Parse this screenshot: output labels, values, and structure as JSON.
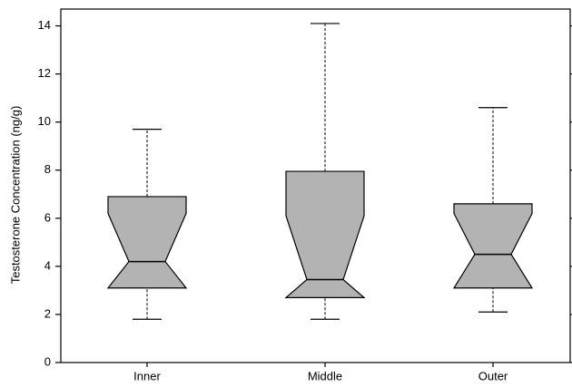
{
  "chart_data": {
    "type": "box",
    "y_label": "Testosterone Concentration (ng/g)",
    "categories": [
      "Inner",
      "Middle",
      "Outer"
    ],
    "boxes": [
      {
        "min": 1.8,
        "q1": 3.1,
        "notch_low": 3.1,
        "median": 4.2,
        "notch_high": 6.2,
        "q3": 6.9,
        "max": 9.7
      },
      {
        "min": 1.8,
        "q1": 2.7,
        "notch_low": 2.7,
        "median": 3.45,
        "notch_high": 6.1,
        "q3": 7.95,
        "max": 14.1
      },
      {
        "min": 2.1,
        "q1": 3.1,
        "notch_low": 3.1,
        "median": 4.5,
        "notch_high": 6.2,
        "q3": 6.6,
        "max": 10.6
      }
    ],
    "color": "#b3b3b3",
    "ylim": [
      0,
      14.7
    ],
    "yticks": [
      0,
      2,
      4,
      6,
      8,
      10,
      12,
      14
    ]
  }
}
